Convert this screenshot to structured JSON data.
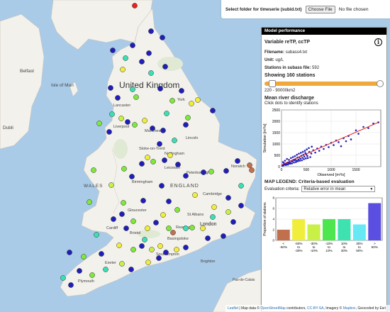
{
  "topbar": {
    "label": "Select folder for timeserie (subid.txt)",
    "choose_button": "Choose File",
    "file_status": "No file chosen"
  },
  "map_labels": {
    "united_kingdom": "United Kingdom",
    "isle_of_man": "Isle of Man",
    "belfast": "Belfast",
    "dublin": "Dubli",
    "york": "York",
    "lancaster": "Lancaster",
    "manchester": "Manchester",
    "liverpool": "Liverpool",
    "stoke": "Stoke-on-Trent",
    "nottingham": "Nottingham",
    "lincoln": "Lincoln",
    "leicester": "Leicester",
    "peterborough": "Peterborough",
    "norwich": "Norwich",
    "birmingham": "Birmingham",
    "england": "ENGLAND",
    "wales": "WALES",
    "cambridge": "Cambridge",
    "gloucester": "Gloucester",
    "cardiff": "Cardiff",
    "bristol": "Bristol",
    "st_albans": "St Albans",
    "london": "London",
    "reading": "Reading",
    "basingstoke": "Basingstoke",
    "southampton": "Southampton",
    "plymouth": "Plymouth",
    "exeter": "Exeter",
    "brighton": "Brighton",
    "channel": "Pas-de-Calais"
  },
  "panel": {
    "header": "Model performance",
    "variable": "Variable reTP, ccTP",
    "filename_label": "Filename:",
    "filename": "subass4.txt",
    "unit_label": "Unit:",
    "unit": "ug/L",
    "stations_label": "Stations in subass file:",
    "stations_count": "592",
    "showing": "Showing 160 stations",
    "slider_value": 0.04,
    "area_range": "220 - 90000km2",
    "discharge_title": "Mean river discharge",
    "discharge_hint": "Click dots to identify stations",
    "legend_title": "MAP LEGEND: Criteria-based evaluation",
    "criteria_label": "Evaluation criteria:",
    "criteria_value": "Relative error in mean",
    "info_icon": "info-icon"
  },
  "scatter": {
    "xlabel": "Observed [m³/s]",
    "ylabel": "Simulation [m³/s]",
    "xticks": [
      "0",
      "500",
      "1000",
      "1500"
    ],
    "yticks": [
      "0",
      "500",
      "1000",
      "1500",
      "2000",
      "2500"
    ]
  },
  "chart_data": [
    {
      "type": "scatter",
      "title": "Mean river discharge",
      "xlabel": "Observed [m³/s]",
      "ylabel": "Simulation [m³/s]",
      "xlim": [
        0,
        2000
      ],
      "ylim": [
        0,
        2500
      ],
      "fit_line": [
        [
          0,
          80
        ],
        [
          1950,
          1950
        ]
      ],
      "points": [
        [
          20,
          40
        ],
        [
          40,
          60
        ],
        [
          60,
          90
        ],
        [
          80,
          120
        ],
        [
          100,
          110
        ],
        [
          120,
          180
        ],
        [
          140,
          150
        ],
        [
          160,
          210
        ],
        [
          180,
          160
        ],
        [
          200,
          250
        ],
        [
          220,
          230
        ],
        [
          240,
          300
        ],
        [
          260,
          280
        ],
        [
          280,
          330
        ],
        [
          300,
          260
        ],
        [
          320,
          400
        ],
        [
          340,
          310
        ],
        [
          360,
          420
        ],
        [
          380,
          350
        ],
        [
          400,
          480
        ],
        [
          420,
          390
        ],
        [
          440,
          520
        ],
        [
          460,
          440
        ],
        [
          480,
          600
        ],
        [
          500,
          540
        ],
        [
          520,
          470
        ],
        [
          560,
          650
        ],
        [
          600,
          580
        ],
        [
          640,
          720
        ],
        [
          680,
          620
        ],
        [
          720,
          800
        ],
        [
          760,
          700
        ],
        [
          800,
          880
        ],
        [
          850,
          780
        ],
        [
          900,
          960
        ],
        [
          950,
          860
        ],
        [
          1000,
          1050
        ],
        [
          1050,
          950
        ],
        [
          1100,
          1150
        ],
        [
          1150,
          1080
        ],
        [
          1200,
          900
        ],
        [
          1250,
          1250
        ],
        [
          1300,
          1120
        ],
        [
          1350,
          1350
        ],
        [
          1400,
          1200
        ],
        [
          1500,
          1600
        ],
        [
          1550,
          1450
        ],
        [
          1650,
          1750
        ],
        [
          1750,
          1700
        ],
        [
          1850,
          1900
        ],
        [
          1950,
          1950
        ],
        [
          30,
          200
        ],
        [
          50,
          150
        ],
        [
          70,
          260
        ],
        [
          90,
          70
        ],
        [
          110,
          340
        ],
        [
          130,
          90
        ],
        [
          150,
          300
        ],
        [
          170,
          130
        ],
        [
          190,
          380
        ],
        [
          210,
          140
        ],
        [
          230,
          420
        ],
        [
          250,
          180
        ],
        [
          270,
          460
        ],
        [
          290,
          200
        ],
        [
          310,
          520
        ],
        [
          330,
          240
        ],
        [
          350,
          570
        ],
        [
          370,
          260
        ],
        [
          390,
          610
        ],
        [
          410,
          280
        ],
        [
          430,
          650
        ],
        [
          450,
          330
        ],
        [
          470,
          700
        ],
        [
          490,
          360
        ],
        [
          510,
          760
        ],
        [
          530,
          380
        ],
        [
          550,
          820
        ],
        [
          580,
          420
        ],
        [
          610,
          880
        ]
      ]
    },
    {
      "type": "bar",
      "title": "",
      "ylabel": "Proportion of stations",
      "categories": [
        "< -50%",
        "-50% to -30%",
        "-30% to -10%",
        "-10% to 10%",
        "10% to 30%",
        "30% to 50%",
        "> 50%"
      ],
      "values": [
        2,
        4,
        3,
        4,
        4,
        3,
        7
      ],
      "colors": [
        "#c0704d",
        "#f0ee3b",
        "#c8f046",
        "#4ee64e",
        "#3ee2b0",
        "#66e8f5",
        "#5a4fe0"
      ],
      "ylim": [
        0,
        8
      ],
      "yticks": [
        0,
        2,
        4,
        6,
        8
      ]
    }
  ],
  "stations": [
    {
      "x": 190,
      "y": 8,
      "c": "#e8231b"
    },
    {
      "x": 213,
      "y": 44,
      "c": "#1f1fb8"
    },
    {
      "x": 187,
      "y": 64,
      "c": "#1f1fb8"
    },
    {
      "x": 229,
      "y": 53,
      "c": "#1f1fb8"
    },
    {
      "x": 159,
      "y": 71,
      "c": "#1f1fb8"
    },
    {
      "x": 210,
      "y": 75,
      "c": "#1f1fb8"
    },
    {
      "x": 177,
      "y": 82,
      "c": "#3ae0b4"
    },
    {
      "x": 200,
      "y": 87,
      "c": "#1f1fb8"
    },
    {
      "x": 233,
      "y": 94,
      "c": "#1f1fb8"
    },
    {
      "x": 213,
      "y": 103,
      "c": "#3ae0b4"
    },
    {
      "x": 173,
      "y": 98,
      "c": "#f0ee3b"
    },
    {
      "x": 156,
      "y": 124,
      "c": "#1f1fb8"
    },
    {
      "x": 187,
      "y": 126,
      "c": "#3ae0b4"
    },
    {
      "x": 166,
      "y": 138,
      "c": "#1f1fb8"
    },
    {
      "x": 192,
      "y": 137,
      "c": "#7ee83c"
    },
    {
      "x": 226,
      "y": 125,
      "c": "#1f1fb8"
    },
    {
      "x": 243,
      "y": 142,
      "c": "#7ee83c"
    },
    {
      "x": 256,
      "y": 128,
      "c": "#1f1fb8"
    },
    {
      "x": 270,
      "y": 146,
      "c": "#f0ee3b"
    },
    {
      "x": 279,
      "y": 141,
      "c": "#f0ee3b"
    },
    {
      "x": 300,
      "y": 156,
      "c": "#1f1fb8"
    },
    {
      "x": 158,
      "y": 161,
      "c": "#3ae0b4"
    },
    {
      "x": 171,
      "y": 167,
      "c": "#c8f046"
    },
    {
      "x": 180,
      "y": 172,
      "c": "#1f1fb8"
    },
    {
      "x": 190,
      "y": 176,
      "c": "#7ee83c"
    },
    {
      "x": 204,
      "y": 170,
      "c": "#f0ee3b"
    },
    {
      "x": 215,
      "y": 181,
      "c": "#1f1fb8"
    },
    {
      "x": 235,
      "y": 160,
      "c": "#3ae0b4"
    },
    {
      "x": 230,
      "y": 184,
      "c": "#1f1fb8"
    },
    {
      "x": 262,
      "y": 176,
      "c": "#1f1fb8"
    },
    {
      "x": 265,
      "y": 166,
      "c": "#7ee83c"
    },
    {
      "x": 140,
      "y": 174,
      "c": "#7ee83c"
    },
    {
      "x": 154,
      "y": 186,
      "c": "#1f1fb8"
    },
    {
      "x": 246,
      "y": 198,
      "c": "#3ae0b4"
    },
    {
      "x": 225,
      "y": 203,
      "c": "#1f1fb8"
    },
    {
      "x": 208,
      "y": 222,
      "c": "#f0ee3b"
    },
    {
      "x": 200,
      "y": 231,
      "c": "#1f1fb8"
    },
    {
      "x": 216,
      "y": 228,
      "c": "#7ee83c"
    },
    {
      "x": 232,
      "y": 226,
      "c": "#1f1fb8"
    },
    {
      "x": 240,
      "y": 219,
      "c": "#f0ee3b"
    },
    {
      "x": 251,
      "y": 232,
      "c": "#1f1fb8"
    },
    {
      "x": 175,
      "y": 238,
      "c": "#7ee83c"
    },
    {
      "x": 186,
      "y": 249,
      "c": "#1f1fb8"
    },
    {
      "x": 132,
      "y": 240,
      "c": "#7ee83c"
    },
    {
      "x": 157,
      "y": 261,
      "c": "#c8f046"
    },
    {
      "x": 228,
      "y": 262,
      "c": "#1f1fb8"
    },
    {
      "x": 262,
      "y": 248,
      "c": "#1f1fb8"
    },
    {
      "x": 287,
      "y": 243,
      "c": "#1f1fb8"
    },
    {
      "x": 298,
      "y": 242,
      "c": "#7ee83c"
    },
    {
      "x": 319,
      "y": 241,
      "c": "#1f1fb8"
    },
    {
      "x": 335,
      "y": 227,
      "c": "#1f1fb8"
    },
    {
      "x": 352,
      "y": 233,
      "c": "#c0704d"
    },
    {
      "x": 355,
      "y": 240,
      "c": "#c0704d"
    },
    {
      "x": 340,
      "y": 262,
      "c": "#3ae0b4"
    },
    {
      "x": 322,
      "y": 279,
      "c": "#1f1fb8"
    },
    {
      "x": 275,
      "y": 275,
      "c": "#f0ee3b"
    },
    {
      "x": 202,
      "y": 283,
      "c": "#1f1fb8"
    },
    {
      "x": 174,
      "y": 286,
      "c": "#7ee83c"
    },
    {
      "x": 238,
      "y": 284,
      "c": "#1f1fb8"
    },
    {
      "x": 250,
      "y": 296,
      "c": "#7ee83c"
    },
    {
      "x": 300,
      "y": 306,
      "c": "#3ae0b4"
    },
    {
      "x": 302,
      "y": 292,
      "c": "#f0ee3b"
    },
    {
      "x": 340,
      "y": 290,
      "c": "#1f1fb8"
    },
    {
      "x": 322,
      "y": 299,
      "c": "#c8f046"
    },
    {
      "x": 329,
      "y": 313,
      "c": "#1f1fb8"
    },
    {
      "x": 160,
      "y": 309,
      "c": "#1f1fb8"
    },
    {
      "x": 188,
      "y": 312,
      "c": "#7ee83c"
    },
    {
      "x": 178,
      "y": 322,
      "c": "#1f1fb8"
    },
    {
      "x": 208,
      "y": 322,
      "c": "#f0ee3b"
    },
    {
      "x": 220,
      "y": 314,
      "c": "#1f1fb8"
    },
    {
      "x": 230,
      "y": 303,
      "c": "#f0ee3b"
    },
    {
      "x": 238,
      "y": 322,
      "c": "#7ee83c"
    },
    {
      "x": 244,
      "y": 328,
      "c": "#c0704d"
    },
    {
      "x": 262,
      "y": 322,
      "c": "#3ae0b4"
    },
    {
      "x": 271,
      "y": 321,
      "c": "#7ee83c"
    },
    {
      "x": 286,
      "y": 322,
      "c": "#f0ee3b"
    },
    {
      "x": 293,
      "y": 336,
      "c": "#1f1fb8"
    },
    {
      "x": 315,
      "y": 333,
      "c": "#1f1fb8"
    },
    {
      "x": 136,
      "y": 331,
      "c": "#3ae0b4"
    },
    {
      "x": 98,
      "y": 356,
      "c": "#1f1fb8"
    },
    {
      "x": 118,
      "y": 362,
      "c": "#7ee83c"
    },
    {
      "x": 143,
      "y": 358,
      "c": "#1f1fb8"
    },
    {
      "x": 168,
      "y": 346,
      "c": "#f0ee3b"
    },
    {
      "x": 188,
      "y": 352,
      "c": "#7ee83c"
    },
    {
      "x": 200,
      "y": 347,
      "c": "#1f1fb8"
    },
    {
      "x": 214,
      "y": 352,
      "c": "#c8f046"
    },
    {
      "x": 226,
      "y": 347,
      "c": "#f0ee3b"
    },
    {
      "x": 234,
      "y": 356,
      "c": "#1f1fb8"
    },
    {
      "x": 249,
      "y": 352,
      "c": "#f0ee3b"
    },
    {
      "x": 262,
      "y": 349,
      "c": "#1f1fb8"
    },
    {
      "x": 112,
      "y": 382,
      "c": "#1f1fb8"
    },
    {
      "x": 130,
      "y": 388,
      "c": "#7ee83c"
    },
    {
      "x": 149,
      "y": 380,
      "c": "#3ae0b4"
    },
    {
      "x": 172,
      "y": 372,
      "c": "#c8f046"
    },
    {
      "x": 185,
      "y": 380,
      "c": "#1f1fb8"
    },
    {
      "x": 100,
      "y": 402,
      "c": "#1f1fb8"
    },
    {
      "x": 89,
      "y": 392,
      "c": "#3ae0b4"
    },
    {
      "x": 209,
      "y": 370,
      "c": "#f0ee3b"
    },
    {
      "x": 224,
      "y": 364,
      "c": "#1f1fb8"
    },
    {
      "x": 126,
      "y": 285,
      "c": "#7ee83c"
    },
    {
      "x": 172,
      "y": 302,
      "c": "#1f1fb8"
    },
    {
      "x": 204,
      "y": 338,
      "c": "#3ae0b4"
    }
  ]
}
